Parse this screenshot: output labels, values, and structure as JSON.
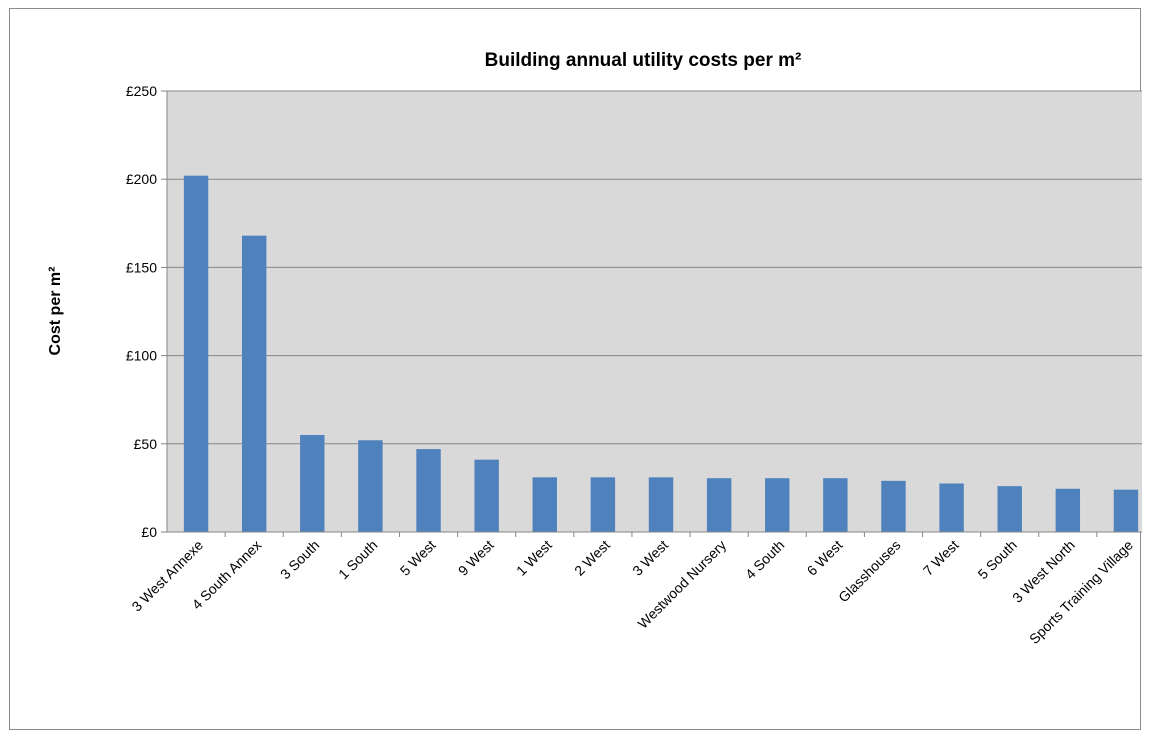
{
  "chart_data": {
    "type": "bar",
    "title": "Building annual utility costs per m²",
    "xlabel": "",
    "ylabel": "Cost per m²",
    "categories": [
      "3 West Annexe",
      "4 South Annex",
      "3 South",
      "1 South",
      "5 West",
      "9 West",
      "1 West",
      "2 West",
      "3 West",
      "Westwood Nursery",
      "4 South",
      "6 West",
      "Glasshouses",
      "7 West",
      "5 South",
      "3 West North",
      "Sports Training Village"
    ],
    "values": [
      202,
      168,
      55,
      52,
      47,
      41,
      31,
      31,
      31,
      30.5,
      30.5,
      30.5,
      29,
      27.5,
      26,
      24.5,
      24
    ],
    "ylim": [
      0,
      250
    ],
    "yticks": [
      0,
      50,
      100,
      150,
      200,
      250
    ],
    "ytick_labels": [
      "£0",
      "£50",
      "£100",
      "£150",
      "£200",
      "£250"
    ],
    "grid": true,
    "legend": "none",
    "colors": {
      "bar": "#4f81bd",
      "plot_background": "#d9d9d9",
      "gridline": "#868686"
    }
  }
}
